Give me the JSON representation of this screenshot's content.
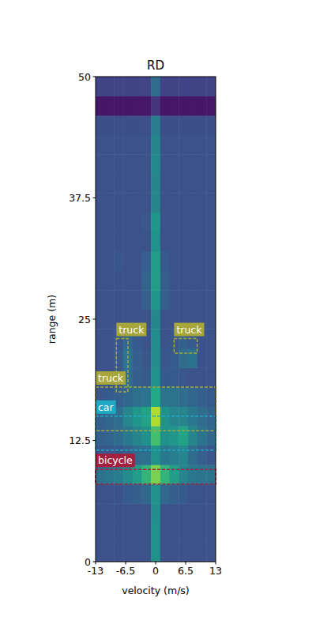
{
  "chart_data": {
    "type": "heatmap",
    "title": "RD",
    "x_label": "velocity (m/s)",
    "y_label": "range (m)",
    "xlim": [
      -13,
      13
    ],
    "ylim": [
      0,
      50
    ],
    "xticks": [
      -13,
      -6.5,
      0,
      6.5,
      13
    ],
    "yticks": [
      0,
      12.5,
      25,
      37.5,
      50
    ],
    "color_range": [
      0,
      1
    ],
    "x_edges": [
      -13,
      -11,
      -9,
      -7,
      -5,
      -3,
      -1,
      1,
      3,
      5,
      7,
      9,
      11,
      13
    ],
    "y_edges": [
      0,
      2,
      4,
      6,
      8,
      10,
      12,
      14,
      16,
      18,
      20,
      22,
      24,
      26,
      28,
      30,
      32,
      34,
      36,
      38,
      40,
      42,
      44,
      46,
      48,
      50
    ],
    "cells": [
      [
        0.25,
        0.25,
        0.25,
        0.25,
        0.25,
        0.25,
        0.5,
        0.25,
        0.25,
        0.25,
        0.25,
        0.25,
        0.25
      ],
      [
        0.25,
        0.25,
        0.25,
        0.25,
        0.25,
        0.25,
        0.5,
        0.25,
        0.25,
        0.25,
        0.25,
        0.25,
        0.25
      ],
      [
        0.25,
        0.25,
        0.25,
        0.25,
        0.25,
        0.25,
        0.48,
        0.25,
        0.25,
        0.25,
        0.25,
        0.25,
        0.25
      ],
      [
        0.25,
        0.25,
        0.26,
        0.28,
        0.3,
        0.33,
        0.5,
        0.33,
        0.3,
        0.28,
        0.26,
        0.25,
        0.25
      ],
      [
        0.38,
        0.4,
        0.42,
        0.48,
        0.55,
        0.65,
        0.8,
        0.65,
        0.55,
        0.45,
        0.4,
        0.38,
        0.38
      ],
      [
        0.27,
        0.27,
        0.28,
        0.3,
        0.35,
        0.36,
        0.5,
        0.4,
        0.42,
        0.45,
        0.35,
        0.3,
        0.27
      ],
      [
        0.3,
        0.32,
        0.35,
        0.4,
        0.45,
        0.5,
        0.7,
        0.5,
        0.52,
        0.58,
        0.45,
        0.38,
        0.33
      ],
      [
        0.3,
        0.33,
        0.36,
        0.45,
        0.52,
        0.58,
        0.88,
        0.5,
        0.45,
        0.45,
        0.4,
        0.35,
        0.32
      ],
      [
        0.27,
        0.28,
        0.3,
        0.33,
        0.36,
        0.38,
        0.6,
        0.38,
        0.38,
        0.35,
        0.33,
        0.3,
        0.28
      ],
      [
        0.25,
        0.25,
        0.27,
        0.36,
        0.3,
        0.28,
        0.5,
        0.28,
        0.28,
        0.27,
        0.25,
        0.25,
        0.25
      ],
      [
        0.25,
        0.25,
        0.28,
        0.38,
        0.3,
        0.27,
        0.48,
        0.27,
        0.28,
        0.35,
        0.37,
        0.26,
        0.25
      ],
      [
        0.25,
        0.25,
        0.27,
        0.34,
        0.28,
        0.25,
        0.48,
        0.25,
        0.27,
        0.3,
        0.28,
        0.25,
        0.25
      ],
      [
        0.25,
        0.25,
        0.25,
        0.25,
        0.25,
        0.25,
        0.46,
        0.25,
        0.25,
        0.25,
        0.25,
        0.25,
        0.25
      ],
      [
        0.25,
        0.25,
        0.25,
        0.25,
        0.25,
        0.3,
        0.52,
        0.3,
        0.25,
        0.25,
        0.25,
        0.25,
        0.25
      ],
      [
        0.25,
        0.25,
        0.25,
        0.25,
        0.25,
        0.32,
        0.55,
        0.3,
        0.25,
        0.25,
        0.25,
        0.25,
        0.25
      ],
      [
        0.25,
        0.25,
        0.27,
        0.25,
        0.25,
        0.3,
        0.55,
        0.28,
        0.25,
        0.25,
        0.25,
        0.25,
        0.25
      ],
      [
        0.25,
        0.25,
        0.25,
        0.25,
        0.25,
        0.25,
        0.5,
        0.25,
        0.25,
        0.25,
        0.25,
        0.25,
        0.25
      ],
      [
        0.25,
        0.25,
        0.25,
        0.25,
        0.25,
        0.27,
        0.52,
        0.25,
        0.25,
        0.25,
        0.25,
        0.25,
        0.25
      ],
      [
        0.25,
        0.25,
        0.25,
        0.25,
        0.25,
        0.25,
        0.45,
        0.25,
        0.25,
        0.25,
        0.25,
        0.25,
        0.25
      ],
      [
        0.25,
        0.25,
        0.25,
        0.25,
        0.25,
        0.25,
        0.45,
        0.25,
        0.25,
        0.25,
        0.25,
        0.25,
        0.25
      ],
      [
        0.25,
        0.25,
        0.25,
        0.25,
        0.25,
        0.25,
        0.47,
        0.25,
        0.25,
        0.25,
        0.25,
        0.25,
        0.25
      ],
      [
        0.25,
        0.25,
        0.25,
        0.25,
        0.25,
        0.25,
        0.45,
        0.25,
        0.25,
        0.25,
        0.25,
        0.25,
        0.25
      ],
      [
        0.24,
        0.24,
        0.24,
        0.24,
        0.24,
        0.24,
        0.42,
        0.24,
        0.24,
        0.24,
        0.24,
        0.24,
        0.24
      ],
      [
        0.06,
        0.06,
        0.06,
        0.06,
        0.06,
        0.06,
        0.15,
        0.06,
        0.06,
        0.06,
        0.06,
        0.06,
        0.06
      ],
      [
        0.2,
        0.2,
        0.2,
        0.2,
        0.2,
        0.2,
        0.35,
        0.2,
        0.2,
        0.2,
        0.2,
        0.2,
        0.2
      ]
    ],
    "annotations": [
      {
        "label": "truck",
        "color": "#a6a63c",
        "x": [
          -8.5,
          -6
        ],
        "y": [
          17.5,
          23
        ]
      },
      {
        "label": "truck",
        "color": "#a6a63c",
        "x": [
          4,
          9
        ],
        "y": [
          21.5,
          23
        ]
      },
      {
        "label": "truck",
        "color": "#a6a63c",
        "x": [
          -13,
          13
        ],
        "y": [
          13.5,
          18
        ]
      },
      {
        "label": "car",
        "color": "#1fa9c2",
        "x": [
          -13,
          13
        ],
        "y": [
          11.5,
          15
        ]
      },
      {
        "label": "bicycle",
        "color": "#a3213f",
        "x": [
          -13,
          13
        ],
        "y": [
          8,
          9.5
        ]
      }
    ]
  }
}
